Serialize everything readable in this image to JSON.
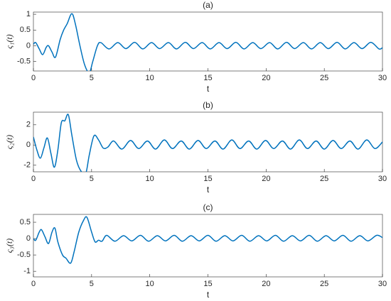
{
  "chart_data": [
    {
      "type": "line",
      "title": "(a)",
      "xlabel": "t",
      "ylabel": "ς₁(t)",
      "xlim": [
        0,
        30
      ],
      "xticks": [
        0,
        5,
        10,
        15,
        20,
        25,
        30
      ],
      "ylim": [
        -0.8,
        1.07
      ],
      "yticks": [
        -0.5,
        0,
        0.5,
        1
      ],
      "series": [
        {
          "color": "#0072bd",
          "x": [
            0,
            0.2,
            0.5,
            0.8,
            1.1,
            1.3,
            1.6,
            1.9,
            2.3,
            2.6,
            2.9,
            3.3,
            3.6,
            4.0,
            4.4,
            4.8,
            5.1,
            5.5,
            5.8,
            6.5,
            7.25,
            7.95,
            8.7,
            9.4,
            10.15,
            10.85,
            11.6,
            12.3,
            13.05,
            13.75,
            14.5,
            15.2,
            15.95,
            16.65,
            17.4,
            18.1,
            18.85,
            19.55,
            20.3,
            21.0,
            21.75,
            22.45,
            23.2,
            23.9,
            24.65,
            25.35,
            26.1,
            26.8,
            27.55,
            28.25,
            29.0,
            29.7,
            30
          ],
          "values": [
            0.05,
            0.1,
            -0.1,
            -0.28,
            -0.05,
            0,
            -0.2,
            -0.36,
            0.2,
            0.5,
            0.7,
            1.02,
            0.7,
            0,
            -0.6,
            -0.85,
            -0.5,
            0,
            0.1,
            -0.1,
            0.1,
            -0.09,
            0.11,
            -0.1,
            0.1,
            -0.09,
            0.1,
            -0.1,
            0.11,
            -0.09,
            0.1,
            -0.1,
            0.1,
            -0.09,
            0.11,
            -0.1,
            0.1,
            -0.09,
            0.1,
            -0.1,
            0.11,
            -0.09,
            0.1,
            -0.1,
            0.1,
            -0.09,
            0.11,
            -0.1,
            0.1,
            -0.09,
            0.11,
            -0.1,
            -0.06
          ]
        }
      ]
    },
    {
      "type": "line",
      "title": "(b)",
      "xlabel": "t",
      "ylabel": "ς₂(t)",
      "xlim": [
        0,
        30
      ],
      "xticks": [
        0,
        5,
        10,
        15,
        20,
        25,
        30
      ],
      "ylim": [
        -2.65,
        3.25
      ],
      "yticks": [
        -2,
        0,
        2
      ],
      "series": [
        {
          "color": "#0072bd",
          "x": [
            0,
            0.3,
            0.6,
            0.9,
            1.2,
            1.5,
            1.8,
            2.1,
            2.4,
            2.7,
            3.0,
            3.3,
            3.7,
            4.1,
            4.5,
            4.8,
            5.2,
            5.6,
            6.0,
            6.4,
            6.9,
            7.6,
            8.35,
            9.05,
            9.8,
            10.5,
            11.25,
            11.95,
            12.7,
            13.4,
            14.15,
            14.85,
            15.6,
            16.3,
            17.05,
            17.75,
            18.5,
            19.2,
            19.95,
            20.65,
            21.4,
            22.1,
            22.85,
            23.55,
            24.3,
            25.0,
            25.75,
            26.45,
            27.2,
            27.9,
            28.65,
            29.35,
            30
          ],
          "values": [
            0.8,
            -0.5,
            -1.3,
            -0.3,
            0.7,
            -0.8,
            -2.2,
            -0.5,
            2.2,
            2.4,
            3.0,
            1.0,
            -1.5,
            -2.6,
            -2.8,
            -1.0,
            0.9,
            0.5,
            -0.3,
            -0.2,
            0.4,
            -0.4,
            0.45,
            -0.35,
            0.4,
            -0.4,
            0.5,
            -0.35,
            0.4,
            -0.4,
            0.45,
            -0.35,
            0.4,
            -0.4,
            0.5,
            -0.35,
            0.4,
            -0.4,
            0.45,
            -0.35,
            0.4,
            -0.4,
            0.5,
            -0.35,
            0.4,
            -0.4,
            0.45,
            -0.35,
            0.4,
            -0.4,
            0.5,
            -0.35,
            0.3
          ]
        }
      ]
    },
    {
      "type": "line",
      "title": "(c)",
      "xlabel": "t",
      "ylabel": "ς₃(t)",
      "xlim": [
        0,
        30
      ],
      "xticks": [
        0,
        5,
        10,
        15,
        20,
        25,
        30
      ],
      "ylim": [
        -1.17,
        0.74
      ],
      "yticks": [
        -1,
        -0.5,
        0,
        0.5
      ],
      "series": [
        {
          "color": "#0072bd",
          "x": [
            0,
            0.2,
            0.5,
            0.7,
            1.0,
            1.3,
            1.6,
            1.85,
            2.1,
            2.5,
            2.8,
            3.2,
            3.5,
            3.9,
            4.3,
            4.6,
            5.0,
            5.3,
            5.6,
            5.9,
            6.3,
            7.0,
            7.75,
            8.45,
            9.2,
            9.9,
            10.65,
            11.35,
            12.1,
            12.8,
            13.55,
            14.25,
            15.0,
            15.7,
            16.45,
            17.15,
            17.9,
            18.6,
            19.35,
            20.05,
            20.8,
            21.5,
            22.25,
            22.95,
            23.7,
            24.4,
            25.15,
            25.85,
            26.6,
            27.3,
            28.05,
            28.75,
            29.5,
            30
          ],
          "values": [
            0,
            -0.05,
            0.2,
            0.27,
            0.05,
            -0.15,
            0.2,
            0.32,
            -0.1,
            -0.5,
            -0.6,
            -0.75,
            -0.4,
            0.2,
            0.55,
            0.65,
            0.2,
            -0.1,
            -0.05,
            -0.08,
            0.1,
            -0.08,
            0.09,
            -0.07,
            0.1,
            -0.08,
            0.09,
            -0.07,
            0.1,
            -0.08,
            0.09,
            -0.07,
            0.1,
            -0.08,
            0.09,
            -0.07,
            0.1,
            -0.08,
            0.09,
            -0.07,
            0.1,
            -0.08,
            0.09,
            -0.07,
            0.1,
            -0.08,
            0.09,
            -0.07,
            0.1,
            -0.08,
            0.09,
            -0.07,
            0.1,
            0.03
          ]
        }
      ]
    }
  ]
}
